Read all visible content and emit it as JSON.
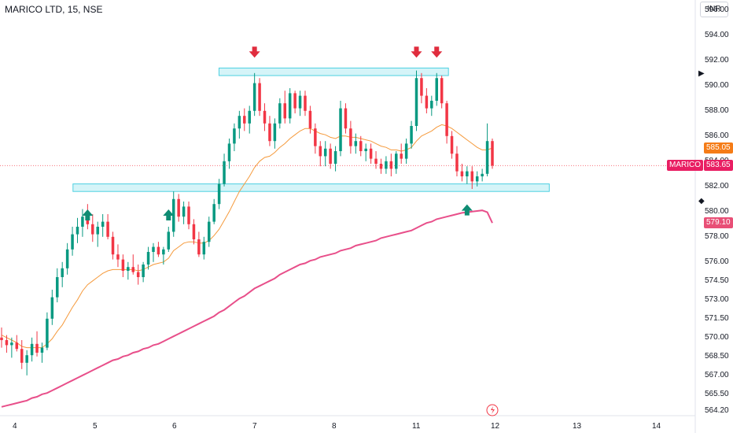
{
  "header": {
    "title": "MARICO LTD, 15, NSE",
    "currency": "INR"
  },
  "price_scale": {
    "ticks": [
      "596.00",
      "594.00",
      "592.00",
      "590.00",
      "588.00",
      "586.00",
      "584.00",
      "582.00",
      "580.00",
      "578.00",
      "576.00",
      "574.50",
      "573.00",
      "571.50",
      "570.00",
      "568.50",
      "567.00",
      "565.50",
      "564.20"
    ],
    "tags": {
      "ema_fast": {
        "value": "585.05",
        "color": "#f57c17"
      },
      "symbol_name": "MARICO",
      "last_price": {
        "value": "583.65",
        "color": "#e91e63"
      },
      "ema_slow": {
        "value": "579.10",
        "color": "#e84f76"
      }
    }
  },
  "time_scale": {
    "labels": [
      "4",
      "5",
      "6",
      "7",
      "8",
      "11",
      "12",
      "13",
      "14"
    ]
  },
  "colors": {
    "up": "#089981",
    "down": "#f23645",
    "zone_fill": "#b2ebf2",
    "zone_border": "#4dd0e1",
    "arrow_down": "#e02d3e",
    "arrow_up": "#0f8c73",
    "ema_fast": "#f59a3c",
    "ema_slow": "#e84f8a"
  },
  "chart_data": {
    "type": "candlestick",
    "symbol": "MARICO LTD",
    "interval": "15",
    "exchange": "NSE",
    "currency": "INR",
    "y_range": [
      563.8,
      596.8
    ],
    "x_labels": [
      "4",
      "5",
      "6",
      "7",
      "8",
      "11",
      "12",
      "13",
      "14"
    ],
    "candles": [
      [
        570.0,
        570.8,
        569.2,
        569.8
      ],
      [
        569.8,
        570.2,
        568.8,
        569.4
      ],
      [
        569.4,
        570.0,
        568.4,
        569.6
      ],
      [
        569.6,
        570.2,
        568.9,
        569.1
      ],
      [
        569.1,
        569.8,
        567.5,
        568.0
      ],
      [
        568.0,
        569.0,
        567.0,
        568.6
      ],
      [
        568.6,
        570.0,
        568.1,
        569.5
      ],
      [
        569.5,
        570.5,
        568.5,
        568.8
      ],
      [
        568.8,
        569.6,
        568.0,
        569.2
      ],
      [
        569.2,
        572.0,
        569.0,
        571.5
      ],
      [
        571.5,
        573.8,
        571.0,
        573.2
      ],
      [
        573.2,
        575.5,
        572.8,
        574.8
      ],
      [
        574.8,
        576.0,
        574.0,
        575.5
      ],
      [
        575.5,
        577.5,
        575.0,
        577.0
      ],
      [
        577.0,
        578.8,
        576.5,
        578.2
      ],
      [
        578.2,
        579.5,
        577.5,
        578.8
      ],
      [
        578.8,
        580.2,
        578.0,
        579.6
      ],
      [
        579.6,
        580.6,
        578.6,
        579.0
      ],
      [
        579.0,
        579.8,
        577.6,
        578.2
      ],
      [
        578.2,
        579.2,
        577.2,
        578.8
      ],
      [
        578.8,
        579.8,
        578.0,
        579.2
      ],
      [
        579.2,
        579.8,
        577.8,
        578.0
      ],
      [
        578.0,
        578.4,
        576.2,
        576.6
      ],
      [
        576.6,
        577.4,
        575.6,
        576.2
      ],
      [
        576.2,
        576.6,
        574.8,
        575.3
      ],
      [
        575.3,
        576.0,
        574.6,
        575.6
      ],
      [
        575.6,
        576.6,
        575.0,
        575.2
      ],
      [
        575.2,
        575.8,
        574.2,
        574.8
      ],
      [
        574.8,
        576.0,
        574.4,
        575.8
      ],
      [
        575.8,
        577.2,
        575.4,
        576.8
      ],
      [
        576.8,
        577.5,
        576.0,
        577.2
      ],
      [
        577.2,
        577.6,
        576.4,
        576.6
      ],
      [
        576.6,
        577.2,
        575.8,
        577.0
      ],
      [
        577.0,
        578.8,
        576.8,
        578.4
      ],
      [
        578.4,
        581.6,
        578.0,
        581.0
      ],
      [
        581.0,
        581.4,
        579.2,
        579.6
      ],
      [
        579.6,
        580.8,
        579.0,
        580.4
      ],
      [
        580.4,
        580.8,
        578.6,
        579.0
      ],
      [
        579.0,
        579.4,
        577.4,
        577.8
      ],
      [
        577.8,
        578.4,
        576.4,
        576.6
      ],
      [
        576.6,
        578.0,
        576.2,
        577.6
      ],
      [
        577.6,
        579.6,
        577.2,
        579.2
      ],
      [
        579.2,
        581.0,
        579.0,
        580.6
      ],
      [
        580.6,
        582.6,
        580.2,
        582.2
      ],
      [
        582.2,
        584.6,
        582.0,
        584.0
      ],
      [
        584.0,
        585.8,
        583.4,
        585.4
      ],
      [
        585.4,
        587.0,
        584.8,
        586.6
      ],
      [
        586.6,
        588.0,
        585.8,
        587.6
      ],
      [
        587.6,
        588.2,
        586.4,
        587.0
      ],
      [
        587.0,
        588.4,
        586.2,
        588.0
      ],
      [
        588.0,
        591.0,
        587.6,
        590.2
      ],
      [
        590.2,
        590.6,
        587.6,
        588.0
      ],
      [
        588.0,
        588.6,
        586.4,
        587.0
      ],
      [
        587.0,
        587.6,
        585.2,
        585.6
      ],
      [
        585.6,
        587.4,
        585.0,
        587.0
      ],
      [
        587.0,
        589.0,
        586.6,
        588.6
      ],
      [
        588.6,
        589.6,
        587.0,
        587.4
      ],
      [
        587.4,
        589.8,
        587.0,
        589.4
      ],
      [
        589.4,
        589.6,
        587.8,
        588.2
      ],
      [
        588.2,
        589.6,
        587.6,
        589.2
      ],
      [
        589.2,
        589.6,
        587.6,
        588.0
      ],
      [
        588.0,
        588.4,
        586.2,
        586.6
      ],
      [
        586.6,
        587.0,
        584.6,
        585.2
      ],
      [
        585.2,
        585.6,
        583.6,
        584.4
      ],
      [
        584.4,
        585.6,
        583.6,
        585.0
      ],
      [
        585.0,
        585.4,
        583.4,
        583.8
      ],
      [
        583.8,
        585.2,
        583.2,
        584.8
      ],
      [
        584.8,
        588.8,
        584.4,
        588.2
      ],
      [
        588.2,
        588.6,
        586.2,
        586.6
      ],
      [
        586.6,
        587.2,
        584.6,
        585.2
      ],
      [
        585.2,
        586.2,
        584.6,
        585.6
      ],
      [
        585.6,
        586.0,
        584.4,
        584.8
      ],
      [
        584.8,
        585.4,
        584.0,
        585.0
      ],
      [
        585.0,
        585.4,
        583.8,
        584.2
      ],
      [
        584.2,
        584.8,
        583.4,
        583.8
      ],
      [
        583.8,
        584.2,
        583.0,
        583.4
      ],
      [
        583.4,
        584.4,
        583.0,
        584.0
      ],
      [
        584.0,
        584.6,
        582.8,
        583.4
      ],
      [
        583.4,
        584.8,
        583.0,
        584.6
      ],
      [
        584.6,
        585.4,
        583.8,
        584.2
      ],
      [
        584.2,
        585.8,
        583.8,
        585.4
      ],
      [
        585.4,
        587.2,
        585.0,
        586.8
      ],
      [
        586.8,
        591.2,
        586.4,
        590.6
      ],
      [
        590.6,
        591.0,
        588.6,
        589.2
      ],
      [
        589.2,
        589.8,
        587.8,
        588.2
      ],
      [
        588.2,
        589.2,
        587.6,
        588.8
      ],
      [
        588.8,
        591.0,
        588.4,
        590.6
      ],
      [
        590.6,
        590.8,
        588.2,
        588.6
      ],
      [
        588.6,
        588.8,
        585.4,
        586.0
      ],
      [
        586.0,
        586.4,
        584.2,
        584.6
      ],
      [
        584.6,
        585.2,
        582.8,
        583.2
      ],
      [
        583.2,
        583.8,
        582.4,
        582.8
      ],
      [
        582.8,
        583.6,
        582.2,
        583.2
      ],
      [
        583.2,
        583.6,
        581.8,
        582.4
      ],
      [
        582.4,
        583.2,
        582.0,
        582.8
      ],
      [
        582.8,
        583.4,
        582.4,
        583.0
      ],
      [
        583.0,
        587.0,
        582.8,
        585.6
      ],
      [
        585.6,
        585.8,
        583.4,
        583.65
      ]
    ],
    "ema_fast": [
      570.2,
      570.0,
      569.8,
      569.6,
      569.3,
      569.2,
      569.2,
      569.2,
      569.2,
      569.5,
      569.9,
      570.5,
      571.0,
      571.7,
      572.4,
      573.0,
      573.7,
      574.2,
      574.5,
      574.8,
      575.1,
      575.3,
      575.4,
      575.4,
      575.4,
      575.4,
      575.4,
      575.3,
      575.4,
      575.6,
      575.8,
      575.9,
      576.0,
      576.3,
      576.9,
      577.2,
      577.5,
      577.6,
      577.6,
      577.5,
      577.5,
      577.7,
      578.1,
      578.6,
      579.3,
      580.0,
      580.8,
      581.6,
      582.2,
      582.8,
      583.5,
      584.0,
      584.3,
      584.4,
      584.7,
      585.1,
      585.4,
      585.8,
      586.1,
      586.4,
      586.6,
      586.6,
      586.4,
      586.2,
      586.1,
      585.9,
      585.8,
      586.0,
      586.0,
      585.9,
      585.9,
      585.8,
      585.7,
      585.6,
      585.4,
      585.2,
      585.1,
      584.9,
      584.9,
      584.8,
      584.9,
      585.1,
      585.6,
      586.0,
      586.2,
      586.4,
      586.7,
      586.9,
      586.8,
      586.6,
      586.3,
      586.0,
      585.7,
      585.4,
      585.1,
      584.9,
      584.9,
      585.05
    ],
    "ema_slow": [
      564.5,
      564.6,
      564.7,
      564.8,
      564.9,
      565.0,
      565.2,
      565.3,
      565.5,
      565.6,
      565.8,
      566.0,
      566.2,
      566.4,
      566.6,
      566.8,
      567.0,
      567.2,
      567.4,
      567.6,
      567.8,
      568.0,
      568.2,
      568.3,
      568.5,
      568.6,
      568.8,
      568.9,
      569.1,
      569.2,
      569.4,
      569.5,
      569.7,
      569.9,
      570.1,
      570.3,
      570.5,
      570.7,
      570.9,
      571.1,
      571.3,
      571.5,
      571.7,
      572.0,
      572.2,
      572.5,
      572.8,
      573.1,
      573.3,
      573.6,
      573.9,
      574.1,
      574.3,
      574.5,
      574.7,
      575.0,
      575.2,
      575.4,
      575.6,
      575.8,
      575.9,
      576.1,
      576.2,
      576.4,
      576.5,
      576.6,
      576.7,
      576.9,
      577.0,
      577.1,
      577.3,
      577.4,
      577.5,
      577.6,
      577.7,
      577.9,
      578.0,
      578.1,
      578.2,
      578.3,
      578.4,
      578.5,
      578.7,
      578.9,
      579.1,
      579.2,
      579.4,
      579.5,
      579.6,
      579.7,
      579.8,
      579.9,
      579.95,
      580.0,
      580.05,
      580.1,
      579.95,
      579.1
    ],
    "zones": [
      {
        "name": "resistance-zone",
        "top": 591.4,
        "bottom": 590.8,
        "x_start": 0.315,
        "x_end": 0.645
      },
      {
        "name": "support-zone",
        "top": 582.2,
        "bottom": 581.6,
        "x_start": 0.105,
        "x_end": 0.79
      }
    ],
    "arrows": [
      {
        "direction": "down",
        "bar": 50,
        "price": 592.6
      },
      {
        "direction": "down",
        "bar": 82,
        "price": 592.6
      },
      {
        "direction": "down",
        "bar": 86,
        "price": 592.6
      },
      {
        "direction": "up",
        "bar": 17,
        "price": 579.8
      },
      {
        "direction": "up",
        "bar": 33,
        "price": 579.8
      },
      {
        "direction": "up",
        "bar": 92,
        "price": 580.2
      }
    ],
    "grid": false,
    "last_price": 583.65,
    "ema_fast_value": 585.05,
    "ema_slow_value": 579.1
  }
}
